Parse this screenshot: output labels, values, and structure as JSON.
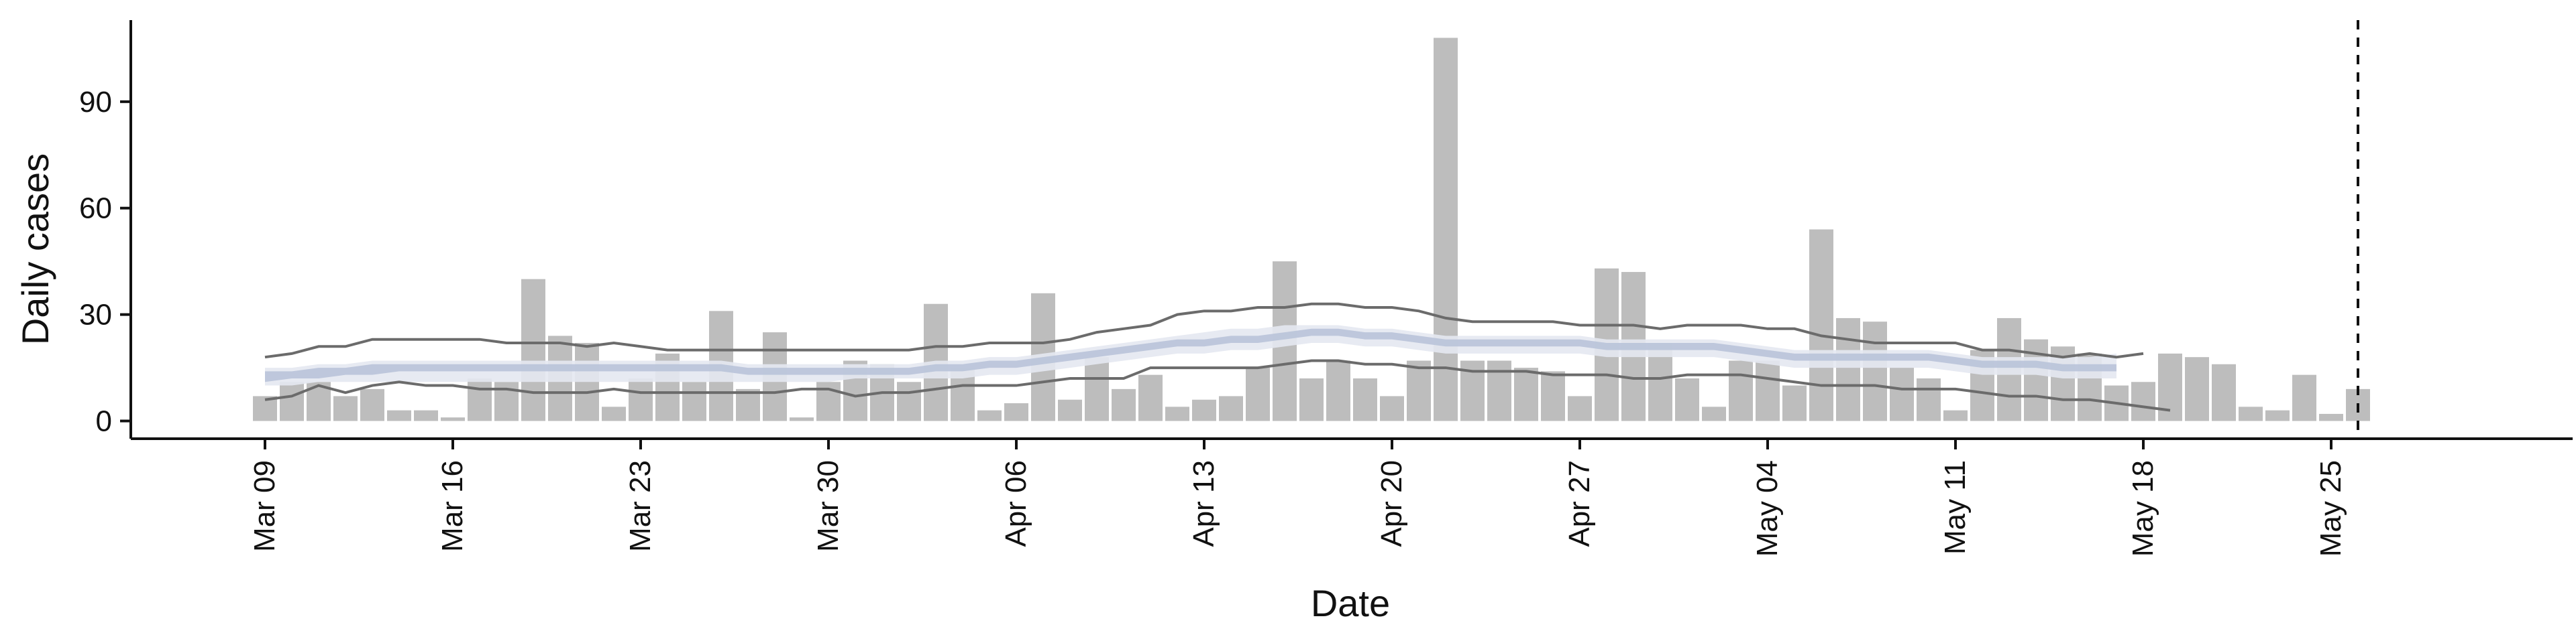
{
  "chart_data": {
    "type": "bar",
    "xlabel": "Date",
    "ylabel": "Daily cases",
    "ylim": [
      -5,
      113
    ],
    "yticks": [
      0,
      30,
      60,
      90
    ],
    "x_start": "2020-03-09",
    "x_range": [
      "2020-03-04",
      "2020-06-03"
    ],
    "xticks": [
      {
        "date": "2020-03-09",
        "label": "Mar 09"
      },
      {
        "date": "2020-03-16",
        "label": "Mar 16"
      },
      {
        "date": "2020-03-23",
        "label": "Mar 23"
      },
      {
        "date": "2020-03-30",
        "label": "Mar 30"
      },
      {
        "date": "2020-04-06",
        "label": "Apr 06"
      },
      {
        "date": "2020-04-13",
        "label": "Apr 13"
      },
      {
        "date": "2020-04-20",
        "label": "Apr 20"
      },
      {
        "date": "2020-04-27",
        "label": "Apr 27"
      },
      {
        "date": "2020-05-04",
        "label": "May 04"
      },
      {
        "date": "2020-05-11",
        "label": "May 11"
      },
      {
        "date": "2020-05-18",
        "label": "May 18"
      },
      {
        "date": "2020-05-25",
        "label": "May 25"
      }
    ],
    "series": [
      {
        "kind": "bars",
        "color": "#bdbdbd",
        "values": [
          7,
          11,
          11,
          7,
          9,
          3,
          3,
          1,
          12,
          11,
          40,
          24,
          22,
          4,
          12,
          19,
          11,
          31,
          9,
          25,
          1,
          11,
          17,
          16,
          11,
          33,
          15,
          3,
          5,
          36,
          6,
          18,
          9,
          13,
          4,
          6,
          7,
          15,
          45,
          12,
          17,
          12,
          7,
          17,
          108,
          17,
          17,
          15,
          14,
          7,
          43,
          42,
          22,
          12,
          4,
          17,
          17,
          10,
          54,
          29,
          28,
          15,
          12,
          3,
          20,
          29,
          23,
          21,
          19,
          10,
          11,
          19,
          18,
          16,
          4,
          3,
          13,
          2,
          9
        ]
      },
      {
        "kind": "band",
        "color": "#e4e8f1",
        "lower": [
          10,
          10,
          11,
          11,
          11,
          11,
          11,
          11,
          11,
          11,
          11,
          11,
          11,
          11,
          11,
          11,
          11,
          11,
          11,
          11,
          11,
          11,
          12,
          12,
          12,
          12,
          12,
          13,
          13,
          14,
          15,
          16,
          17,
          18,
          19,
          19,
          20,
          20,
          21,
          22,
          22,
          21,
          21,
          20,
          19,
          19,
          19,
          19,
          19,
          19,
          18,
          18,
          18,
          18,
          18,
          17,
          16,
          15,
          15,
          15,
          15,
          15,
          15,
          14,
          13,
          13,
          13,
          12,
          12,
          12
        ],
        "upper": [
          15,
          15,
          16,
          16,
          17,
          17,
          17,
          17,
          17,
          17,
          17,
          17,
          17,
          17,
          17,
          17,
          17,
          17,
          16,
          16,
          16,
          16,
          16,
          16,
          16,
          17,
          17,
          18,
          18,
          19,
          20,
          21,
          22,
          23,
          24,
          25,
          26,
          26,
          27,
          27,
          27,
          26,
          26,
          25,
          24,
          24,
          24,
          24,
          24,
          24,
          23,
          23,
          23,
          23,
          23,
          22,
          21,
          20,
          20,
          20,
          20,
          20,
          20,
          19,
          18,
          18,
          18,
          18,
          18,
          19
        ]
      },
      {
        "kind": "band",
        "color": "#b9c3d9",
        "lower": [
          11,
          12,
          12,
          13,
          13,
          14,
          14,
          14,
          14,
          14,
          14,
          14,
          14,
          14,
          14,
          14,
          14,
          14,
          13,
          13,
          13,
          13,
          13,
          13,
          13,
          14,
          14,
          15,
          15,
          16,
          17,
          18,
          19,
          20,
          21,
          21,
          22,
          22,
          23,
          24,
          24,
          23,
          23,
          22,
          21,
          21,
          21,
          21,
          21,
          21,
          20,
          20,
          20,
          20,
          20,
          19,
          18,
          17,
          17,
          17,
          17,
          17,
          17,
          16,
          15,
          15,
          15,
          14,
          14,
          14
        ],
        "upper": [
          14,
          14,
          15,
          15,
          16,
          16,
          16,
          16,
          16,
          16,
          16,
          16,
          16,
          16,
          16,
          16,
          16,
          16,
          15,
          15,
          15,
          15,
          15,
          15,
          15,
          16,
          16,
          17,
          17,
          18,
          19,
          20,
          21,
          22,
          23,
          23,
          24,
          24,
          25,
          26,
          26,
          25,
          25,
          24,
          23,
          23,
          23,
          23,
          23,
          23,
          22,
          22,
          22,
          22,
          22,
          21,
          20,
          19,
          19,
          19,
          19,
          19,
          19,
          18,
          17,
          17,
          17,
          16,
          16,
          16
        ]
      },
      {
        "kind": "line",
        "color": "#6b6b6b",
        "values": [
          18,
          19,
          21,
          21,
          23,
          23,
          23,
          23,
          23,
          22,
          22,
          22,
          21,
          22,
          21,
          20,
          20,
          20,
          20,
          20,
          20,
          20,
          20,
          20,
          20,
          21,
          21,
          22,
          22,
          22,
          23,
          25,
          26,
          27,
          30,
          31,
          31,
          32,
          32,
          33,
          33,
          32,
          32,
          31,
          29,
          28,
          28,
          28,
          28,
          27,
          27,
          27,
          26,
          27,
          27,
          27,
          26,
          26,
          24,
          23,
          22,
          22,
          22,
          22,
          20,
          20,
          19,
          18,
          19,
          18,
          19
        ]
      },
      {
        "kind": "line",
        "color": "#6b6b6b",
        "values": [
          6,
          7,
          10,
          8,
          10,
          11,
          10,
          10,
          9,
          9,
          8,
          8,
          8,
          9,
          8,
          8,
          8,
          8,
          8,
          8,
          9,
          9,
          7,
          8,
          8,
          9,
          10,
          10,
          10,
          11,
          12,
          12,
          12,
          15,
          15,
          15,
          15,
          15,
          16,
          17,
          17,
          16,
          16,
          15,
          15,
          14,
          14,
          14,
          13,
          13,
          13,
          12,
          12,
          13,
          13,
          13,
          12,
          11,
          10,
          10,
          10,
          9,
          9,
          9,
          8,
          7,
          7,
          6,
          6,
          5,
          4,
          3
        ]
      }
    ],
    "vline_date": "2020-05-26",
    "grid": false,
    "legend": "none"
  }
}
